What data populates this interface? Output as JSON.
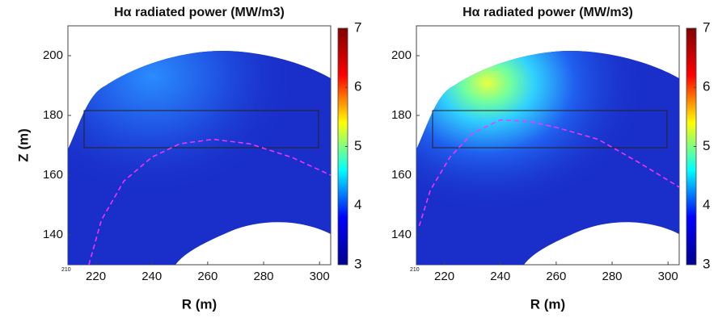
{
  "chart_data": [
    {
      "type": "heatmap",
      "title": "Hα radiated power (MW/m3)",
      "xlabel": "R (m)",
      "ylabel": "Z (m)",
      "corner_label": "210",
      "xlim": [
        210,
        304
      ],
      "ylim": [
        130,
        210
      ],
      "xticks": [
        220,
        240,
        260,
        280,
        300
      ],
      "yticks": [
        140,
        160,
        180,
        200
      ],
      "colorbar": {
        "lim": [
          3,
          7
        ],
        "ticks": [
          3,
          4,
          5,
          6,
          7
        ],
        "colormap": [
          "#00008f",
          "#0000ff",
          "#00ffff",
          "#ffff00",
          "#ff0000",
          "#800000"
        ]
      },
      "series": [
        {
          "color": "#ff33ff",
          "x": [
            217.5,
            222,
            230,
            240,
            250,
            262,
            275,
            290,
            304
          ],
          "values": [
            130,
            145,
            158,
            166,
            170.5,
            172,
            170.5,
            166,
            160
          ]
        }
      ]
    },
    {
      "type": "heatmap",
      "title": "Hα radiated power (MW/m3)",
      "xlabel": "R (m)",
      "corner_label": "210",
      "xlim": [
        210,
        304
      ],
      "ylim": [
        130,
        210
      ],
      "xticks": [
        220,
        240,
        260,
        280,
        300
      ],
      "yticks": [
        140,
        160,
        180,
        200
      ],
      "colorbar": {
        "lim": [
          3,
          7
        ],
        "ticks": [
          3,
          4,
          5,
          6,
          7
        ],
        "colormap": [
          "#00008f",
          "#0000ff",
          "#00ffff",
          "#ffff00",
          "#ff0000",
          "#800000"
        ]
      },
      "series": [
        {
          "color": "#ff33ff",
          "x": [
            211,
            215,
            222,
            230,
            240,
            250,
            260,
            275,
            290,
            304
          ],
          "values": [
            143,
            155,
            166,
            174,
            178.5,
            178,
            176,
            172,
            164,
            156
          ]
        }
      ]
    }
  ]
}
